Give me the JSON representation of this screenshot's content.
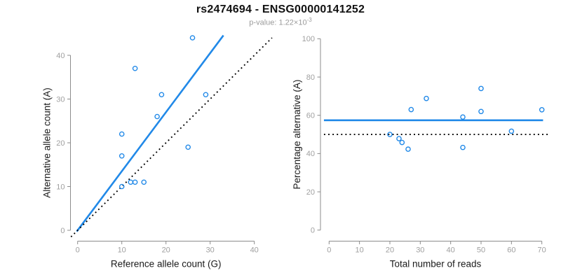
{
  "header": {
    "title": "rs2474694 - ENSG00000141252",
    "subtitle_prefix": "p-value: 1.22×10",
    "subtitle_exponent": "-3"
  },
  "colors": {
    "accent_blue": "#2189e8",
    "reference_black": "#000000",
    "axis_gray": "#8c8c8c",
    "tick_label_gray": "#a0a0a0",
    "axis_title_black": "#1a1a1a",
    "subtitle_gray": "#9b9b9b",
    "title_black": "#121212"
  },
  "chart_data": [
    {
      "type": "scatter",
      "xlabel": "Reference allele count (G)",
      "ylabel": "Alternative allele count (A)",
      "xlim": [
        0,
        40
      ],
      "ylim": [
        0,
        40
      ],
      "xticks": [
        0,
        10,
        20,
        30,
        40
      ],
      "yticks": [
        0,
        10,
        20,
        30,
        40
      ],
      "grid": false,
      "points": [
        [
          26,
          44
        ],
        [
          13,
          37
        ],
        [
          19,
          31
        ],
        [
          29,
          31
        ],
        [
          18,
          26
        ],
        [
          10,
          22
        ],
        [
          25,
          19
        ],
        [
          10,
          17
        ],
        [
          12,
          11
        ],
        [
          13,
          11
        ],
        [
          15,
          11
        ],
        [
          10,
          10
        ]
      ],
      "lines": [
        {
          "name": "fit-line",
          "style": "solid",
          "color": "accent",
          "slope": 1.35,
          "intercept": 0
        },
        {
          "name": "identity-line",
          "style": "dotted",
          "color": "black",
          "slope": 1,
          "intercept": 0
        }
      ]
    },
    {
      "type": "scatter",
      "xlabel": "Total number of reads",
      "ylabel": "Percentage alternative (A)",
      "xlim": [
        0,
        70
      ],
      "ylim": [
        0,
        100
      ],
      "xticks": [
        0,
        10,
        20,
        30,
        40,
        50,
        60,
        70
      ],
      "yticks": [
        0,
        20,
        40,
        60,
        80,
        100
      ],
      "grid": false,
      "points": [
        [
          20,
          50
        ],
        [
          23,
          47.8
        ],
        [
          24,
          45.8
        ],
        [
          26,
          42.3
        ],
        [
          27,
          63
        ],
        [
          32,
          68.8
        ],
        [
          44,
          59.1
        ],
        [
          44,
          43.2
        ],
        [
          50,
          74
        ],
        [
          50,
          62
        ],
        [
          60,
          51.7
        ],
        [
          70,
          62.9
        ]
      ],
      "lines": [
        {
          "name": "mean-line",
          "style": "solid",
          "color": "accent",
          "slope": 0,
          "intercept": 57.4
        },
        {
          "name": "reference-line",
          "style": "dotted",
          "color": "black",
          "slope": 0,
          "intercept": 50
        }
      ]
    }
  ]
}
